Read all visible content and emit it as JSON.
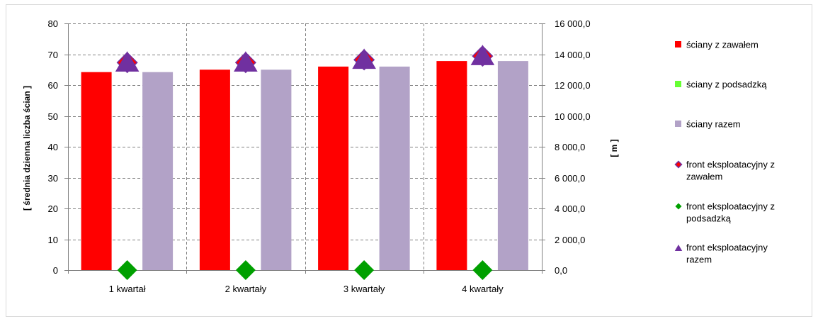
{
  "chart_data": {
    "type": "bar",
    "categories": [
      "1 kwartał",
      "2 kwartały",
      "3 kwartały",
      "4 kwartały"
    ],
    "ylabel": "[ średnia dzienna liczba ścian ]",
    "y2label": "[ m ]",
    "ylim": [
      0,
      80
    ],
    "y2lim": [
      0,
      16000
    ],
    "yticks": [
      "0",
      "10",
      "20",
      "30",
      "40",
      "50",
      "60",
      "70",
      "80"
    ],
    "y2ticks": [
      "0,0",
      "2 000,0",
      "4 000,0",
      "6 000,0",
      "8 000,0",
      "10 000,0",
      "12 000,0",
      "14 000,0",
      "16 000,0"
    ],
    "grid": true,
    "legend_position": "right",
    "series": [
      {
        "name": "ściany z zawałem",
        "kind": "bar",
        "axis": "left",
        "color": "#ff0000",
        "values": [
          64.2,
          65.0,
          66.0,
          67.8
        ]
      },
      {
        "name": "ściany z podsadzką",
        "kind": "bar",
        "axis": "left",
        "color": "#66ff33",
        "values": [
          0,
          0,
          0,
          0
        ]
      },
      {
        "name": "ściany razem",
        "kind": "bar",
        "axis": "left",
        "color": "#b2a2c7",
        "values": [
          64.2,
          65.0,
          66.0,
          67.8
        ]
      },
      {
        "name": "front eksploatacyjny z zawałem",
        "kind": "marker",
        "marker": "diamond",
        "axis": "right",
        "color": "#ff0000",
        "stroke": "#7030a0",
        "values": [
          13460,
          13460,
          13640,
          13880
        ]
      },
      {
        "name": "front eksploatacyjny z podsadzką",
        "kind": "marker",
        "marker": "diamond",
        "axis": "right",
        "color": "#00a000",
        "values": [
          0,
          0,
          0,
          0
        ]
      },
      {
        "name": "front eksploatacyjny razem",
        "kind": "marker",
        "marker": "triangle",
        "axis": "right",
        "color": "#7030a0",
        "values": [
          13460,
          13460,
          13640,
          13880
        ]
      }
    ]
  }
}
